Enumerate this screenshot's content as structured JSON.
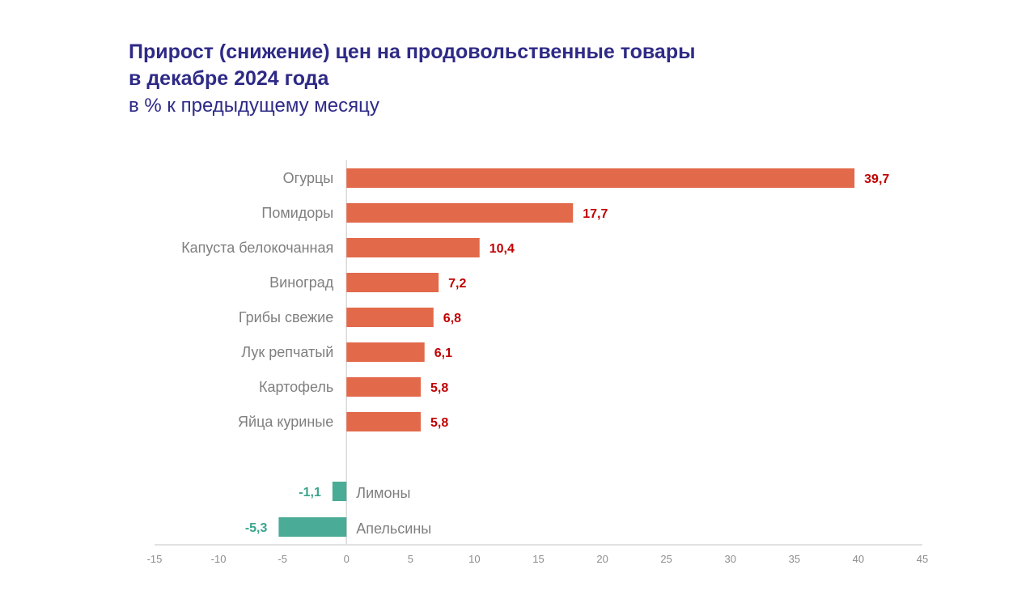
{
  "header": {
    "title_line1": "Прирост (снижение) цен на продовольственные товары",
    "title_line2": "в декабре 2024 года",
    "subtitle": "в % к предыдущему месяцу"
  },
  "colors": {
    "title": "#2e2a86",
    "positive_bar": "#e2694a",
    "negative_bar": "#4aab96",
    "positive_label": "#c00000",
    "negative_label": "#3aa58c",
    "category_label": "#7f7f7f",
    "axis": "#d9d9d9"
  },
  "chart_data": {
    "type": "bar",
    "orientation": "horizontal",
    "title": "Прирост (снижение) цен на продовольственные товары в декабре 2024 года",
    "subtitle": "в % к предыдущему месяцу",
    "categories": [
      "Огурцы",
      "Помидоры",
      "Капуста белокочанная",
      "Виноград",
      "Грибы свежие",
      "Лук репчатый",
      "Картофель",
      "Яйца куриные",
      "Лимоны",
      "Апельсины"
    ],
    "values": [
      39.7,
      17.7,
      10.4,
      7.2,
      6.8,
      6.1,
      5.8,
      5.8,
      -1.1,
      -5.3
    ],
    "value_labels": [
      "39,7",
      "17,7",
      "10,4",
      "7,2",
      "6,8",
      "6,1",
      "5,8",
      "5,8",
      "-1,1",
      "-5,3"
    ],
    "xlim": [
      -15,
      45
    ],
    "xticks": [
      -15,
      -10,
      -5,
      0,
      5,
      10,
      15,
      20,
      25,
      30,
      35,
      40,
      45
    ],
    "grid": false
  }
}
